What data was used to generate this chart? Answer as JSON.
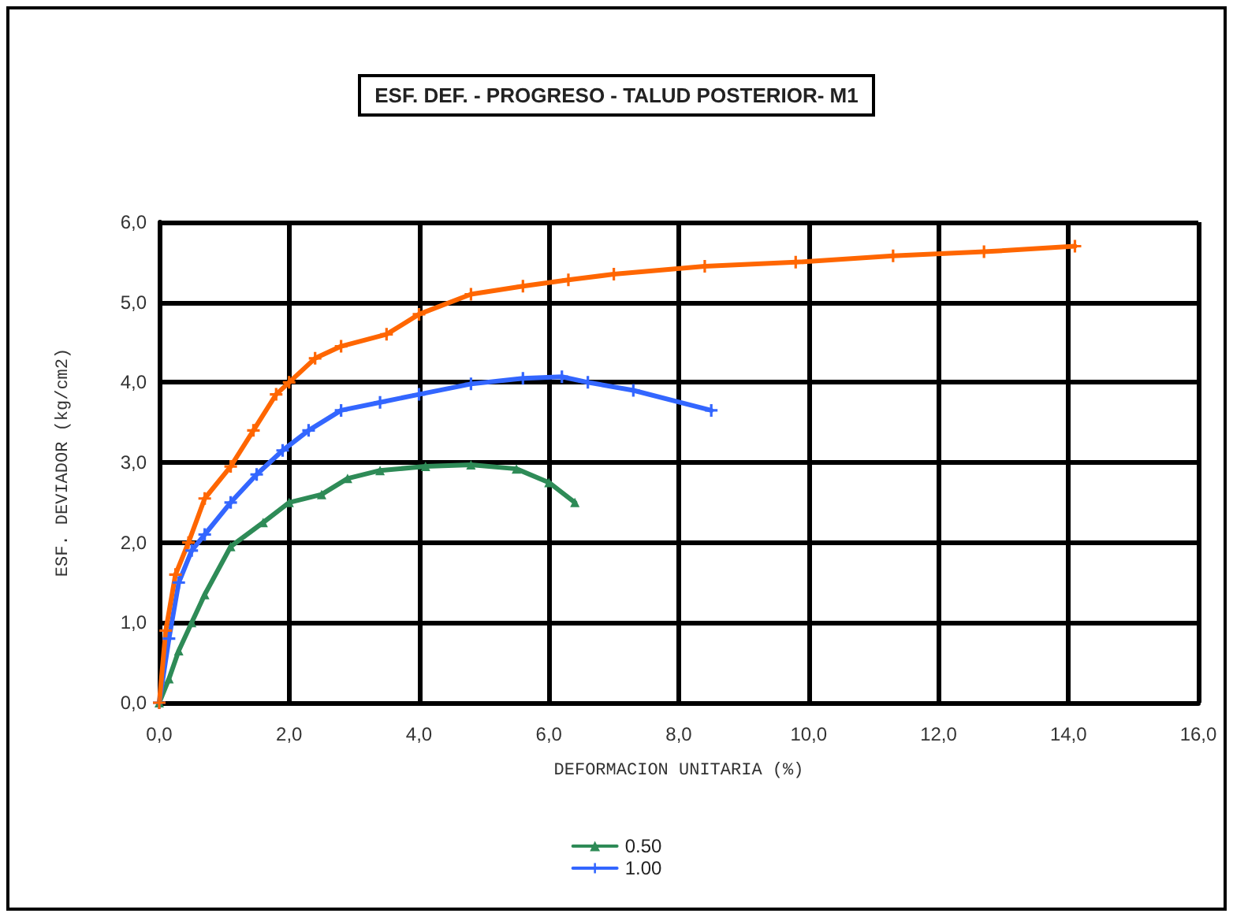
{
  "chart_data": {
    "type": "line",
    "title": "ESF. DEF. - PROGRESO - TALUD POSTERIOR- M1",
    "xlabel": "DEFORMACION UNITARIA (%)",
    "ylabel": "ESF. DEVIADOR (kg/cm2)",
    "xlim": [
      0,
      16
    ],
    "xticks": [
      {
        "value": 0,
        "label": "0,0"
      },
      {
        "value": 2,
        "label": "2,0"
      },
      {
        "value": 4,
        "label": "4,0"
      },
      {
        "value": 6,
        "label": "6,0"
      },
      {
        "value": 8,
        "label": "8,0"
      },
      {
        "value": 10,
        "label": "10,0"
      },
      {
        "value": 12,
        "label": "12,0"
      },
      {
        "value": 14,
        "label": "14,0"
      },
      {
        "value": 16,
        "label": "16,0"
      }
    ],
    "ylim": [
      0,
      6
    ],
    "yticks": [
      {
        "value": 0,
        "label": "0,0"
      },
      {
        "value": 1,
        "label": "1,0"
      },
      {
        "value": 2,
        "label": "2,0"
      },
      {
        "value": 3,
        "label": "3,0"
      },
      {
        "value": 4,
        "label": "4,0"
      },
      {
        "value": 5,
        "label": "5,0"
      },
      {
        "value": 6,
        "label": "6,0"
      }
    ],
    "grid": true,
    "legend": "bottom",
    "line_style": "solid",
    "series": [
      {
        "name": "0.50",
        "color": "#2e8b57",
        "marker": "triangle",
        "x": [
          0,
          0.15,
          0.3,
          0.5,
          0.7,
          1.1,
          1.6,
          2.0,
          2.5,
          2.9,
          3.4,
          4.1,
          4.8,
          5.5,
          6.0,
          6.4
        ],
        "values": [
          0,
          0.3,
          0.65,
          1.0,
          1.35,
          1.95,
          2.25,
          2.5,
          2.6,
          2.8,
          2.9,
          2.95,
          2.97,
          2.92,
          2.75,
          2.5
        ]
      },
      {
        "name": "1.00",
        "color": "#3366ff",
        "marker": "cross",
        "x": [
          0,
          0.15,
          0.3,
          0.5,
          0.7,
          1.1,
          1.5,
          1.9,
          2.3,
          2.8,
          3.4,
          4.0,
          4.8,
          5.6,
          6.2,
          6.6,
          7.3,
          8.5
        ],
        "values": [
          0,
          0.8,
          1.5,
          1.9,
          2.1,
          2.5,
          2.85,
          3.15,
          3.4,
          3.65,
          3.75,
          3.85,
          3.98,
          4.05,
          4.07,
          4.0,
          3.9,
          3.65
        ]
      },
      {
        "color": "#ff6600",
        "marker": "cross",
        "x": [
          0,
          0.1,
          0.25,
          0.45,
          0.7,
          1.1,
          1.45,
          1.8,
          2.0,
          2.4,
          2.8,
          3.5,
          4.0,
          4.8,
          5.6,
          6.3,
          7.0,
          8.4,
          9.8,
          11.3,
          12.7,
          14.1
        ],
        "values": [
          0,
          0.9,
          1.6,
          2.0,
          2.55,
          2.95,
          3.4,
          3.85,
          4.0,
          4.3,
          4.45,
          4.6,
          4.85,
          5.1,
          5.2,
          5.28,
          5.35,
          5.45,
          5.5,
          5.58,
          5.63,
          5.7
        ]
      }
    ]
  }
}
